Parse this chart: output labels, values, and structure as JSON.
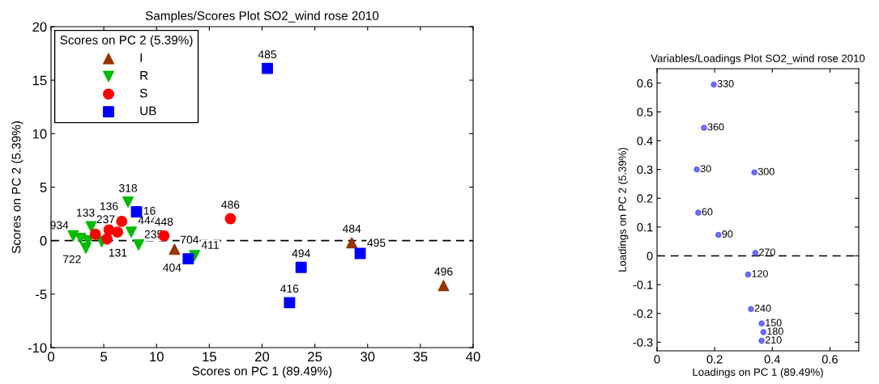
{
  "chart_data": [
    {
      "type": "scatter",
      "title": "Samples/Scores Plot SO2_wind rose 2010",
      "xlabel": "Scores on PC 1 (89.49%)",
      "ylabel": "Scores on PC 2 (5.39%)",
      "legend_title": "Scores on PC 2 (5.39%)",
      "legend": "top left",
      "grid": false,
      "xlim": [
        0,
        40
      ],
      "xticks": [
        0,
        5,
        10,
        15,
        20,
        25,
        30,
        35,
        40
      ],
      "ylim": [
        -10,
        20
      ],
      "yticks": [
        -10,
        -5,
        0,
        5,
        10,
        15,
        20
      ],
      "ref_lines": [
        {
          "axis": "y",
          "value": 0,
          "line_style": "dashed",
          "color": "#000000"
        }
      ],
      "series": [
        {
          "name": "I",
          "color": "#993300",
          "marker": "triangle",
          "x": [
            11.7,
            28.5,
            37.2
          ],
          "values": [
            -0.8,
            -0.2,
            -4.2
          ]
        },
        {
          "name": "R",
          "color": "#00bb00",
          "marker": "triangle_down",
          "x": [
            2.1,
            2.8,
            3.3,
            3.5,
            3.8,
            4.8,
            7.3,
            7.6,
            8.3,
            13.6
          ],
          "values": [
            0.45,
            0.2,
            -0.7,
            0.0,
            1.3,
            -0.1,
            3.6,
            0.8,
            -0.4,
            -1.4
          ]
        },
        {
          "name": "S",
          "color": "#ff0000",
          "marker": "circle",
          "x": [
            4.2,
            5.3,
            5.5,
            6.3,
            6.7,
            10.7,
            17.0
          ],
          "values": [
            0.6,
            0.15,
            1.0,
            0.8,
            1.8,
            0.45,
            2.05
          ]
        },
        {
          "name": "UB",
          "color": "#0000ff",
          "marker": "square",
          "x": [
            8.1,
            13.0,
            20.5,
            22.6,
            23.7,
            29.3
          ],
          "values": [
            2.7,
            -1.7,
            16.1,
            -5.8,
            -2.5,
            -1.2
          ]
        }
      ],
      "annotations": [
        {
          "text": "934",
          "x": 2.1,
          "y": 0.45
        },
        {
          "text": "722",
          "x": 3.3,
          "y": -0.7
        },
        {
          "text": "133",
          "x": 3.8,
          "y": 1.3
        },
        {
          "text": "131",
          "x": 4.8,
          "y": -0.1
        },
        {
          "text": "237",
          "x": 5.5,
          "y": 1.0
        },
        {
          "text": "136",
          "x": 6.7,
          "y": 1.8
        },
        {
          "text": "318",
          "x": 7.3,
          "y": 3.6
        },
        {
          "text": "16",
          "x": 8.1,
          "y": 2.7
        },
        {
          "text": "444",
          "x": 7.6,
          "y": 0.8
        },
        {
          "text": "235",
          "x": 8.3,
          "y": -0.4
        },
        {
          "text": "448",
          "x": 10.7,
          "y": 0.45
        },
        {
          "text": "704",
          "x": 11.7,
          "y": -0.8
        },
        {
          "text": "404",
          "x": 13.0,
          "y": -1.7
        },
        {
          "text": "411",
          "x": 13.6,
          "y": -1.4
        },
        {
          "text": "486",
          "x": 17.0,
          "y": 2.05
        },
        {
          "text": "485",
          "x": 20.5,
          "y": 16.1
        },
        {
          "text": "416",
          "x": 22.6,
          "y": -5.8
        },
        {
          "text": "494",
          "x": 23.7,
          "y": -2.5
        },
        {
          "text": "484",
          "x": 28.5,
          "y": -0.2
        },
        {
          "text": "495",
          "x": 29.3,
          "y": -1.2
        },
        {
          "text": "496",
          "x": 37.2,
          "y": -4.2
        }
      ]
    },
    {
      "type": "scatter",
      "title": "Variables/Loadings Plot SO2_wind rose 2010",
      "xlabel": "Loadings on PC 1 (89.49%)",
      "ylabel": "Loadings on PC 2 (5.39%)",
      "grid": false,
      "xlim": [
        0,
        0.7
      ],
      "xticks": [
        0,
        0.2,
        0.4,
        0.6
      ],
      "ylim": [
        -0.33,
        0.65
      ],
      "yticks": [
        -0.3,
        -0.2,
        -0.1,
        0,
        0.1,
        0.2,
        0.3,
        0.4,
        0.5,
        0.6
      ],
      "ref_lines": [
        {
          "axis": "y",
          "value": 0,
          "line_style": "dashed",
          "color": "#000000"
        }
      ],
      "series": [
        {
          "color": "#4d4dff",
          "marker": "circle",
          "x": [
            0.197,
            0.163,
            0.138,
            0.338,
            0.143,
            0.213,
            0.341,
            0.316,
            0.326,
            0.363,
            0.369,
            0.363
          ],
          "values": [
            0.595,
            0.445,
            0.3,
            0.29,
            0.15,
            0.073,
            0.01,
            -0.065,
            -0.185,
            -0.235,
            -0.265,
            -0.295
          ]
        }
      ],
      "annotations": [
        {
          "text": "330",
          "x": 0.197,
          "y": 0.595
        },
        {
          "text": "360",
          "x": 0.163,
          "y": 0.445
        },
        {
          "text": "30",
          "x": 0.138,
          "y": 0.3
        },
        {
          "text": "300",
          "x": 0.338,
          "y": 0.29
        },
        {
          "text": "60",
          "x": 0.143,
          "y": 0.15
        },
        {
          "text": "90",
          "x": 0.213,
          "y": 0.073
        },
        {
          "text": "270",
          "x": 0.341,
          "y": 0.01
        },
        {
          "text": "120",
          "x": 0.316,
          "y": -0.065
        },
        {
          "text": "240",
          "x": 0.326,
          "y": -0.185
        },
        {
          "text": "150",
          "x": 0.363,
          "y": -0.235
        },
        {
          "text": "180",
          "x": 0.369,
          "y": -0.265
        },
        {
          "text": "210",
          "x": 0.363,
          "y": -0.295
        }
      ]
    }
  ]
}
